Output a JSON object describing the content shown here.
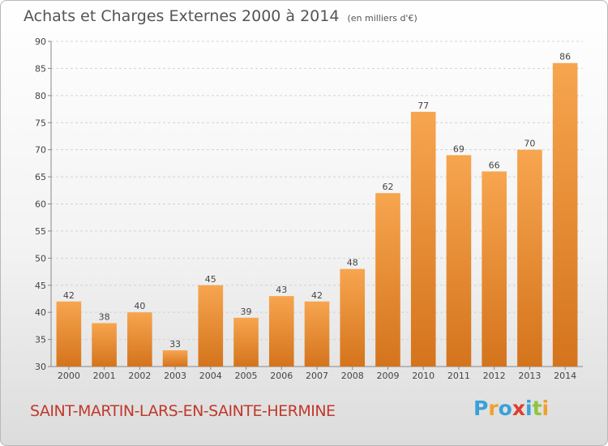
{
  "header": {
    "title": "Achats et Charges Externes 2000 à 2014",
    "unit_note": "(en milliers d'€)"
  },
  "footer": {
    "commune": "SAINT-MARTIN-LARS-EN-SAINTE-HERMINE",
    "logo_letters": [
      "P",
      "r",
      "o",
      "x",
      "i",
      "t",
      "i"
    ],
    "logo_colors": [
      "#3aa0d8",
      "#f0a030",
      "#3aa0d8",
      "#e03c2c",
      "#3aa0d8",
      "#8cc63f",
      "#f0a030"
    ]
  },
  "colors": {
    "bar_light": "#f7a54f",
    "bar_dark": "#d4741c",
    "commune_text": "#c0392b"
  },
  "chart_data": {
    "type": "bar",
    "title": "Achats et Charges Externes 2000 à 2014",
    "categories": [
      "2000",
      "2001",
      "2002",
      "2003",
      "2004",
      "2005",
      "2006",
      "2007",
      "2008",
      "2009",
      "2010",
      "2011",
      "2012",
      "2013",
      "2014"
    ],
    "values": [
      42,
      38,
      40,
      33,
      45,
      39,
      43,
      42,
      48,
      62,
      77,
      69,
      66,
      70,
      86
    ],
    "ylim": [
      30,
      90
    ],
    "yticks": [
      30,
      35,
      40,
      45,
      50,
      55,
      60,
      65,
      70,
      75,
      80,
      85,
      90
    ],
    "grid": "horizontal",
    "xlabel": "",
    "ylabel": ""
  }
}
